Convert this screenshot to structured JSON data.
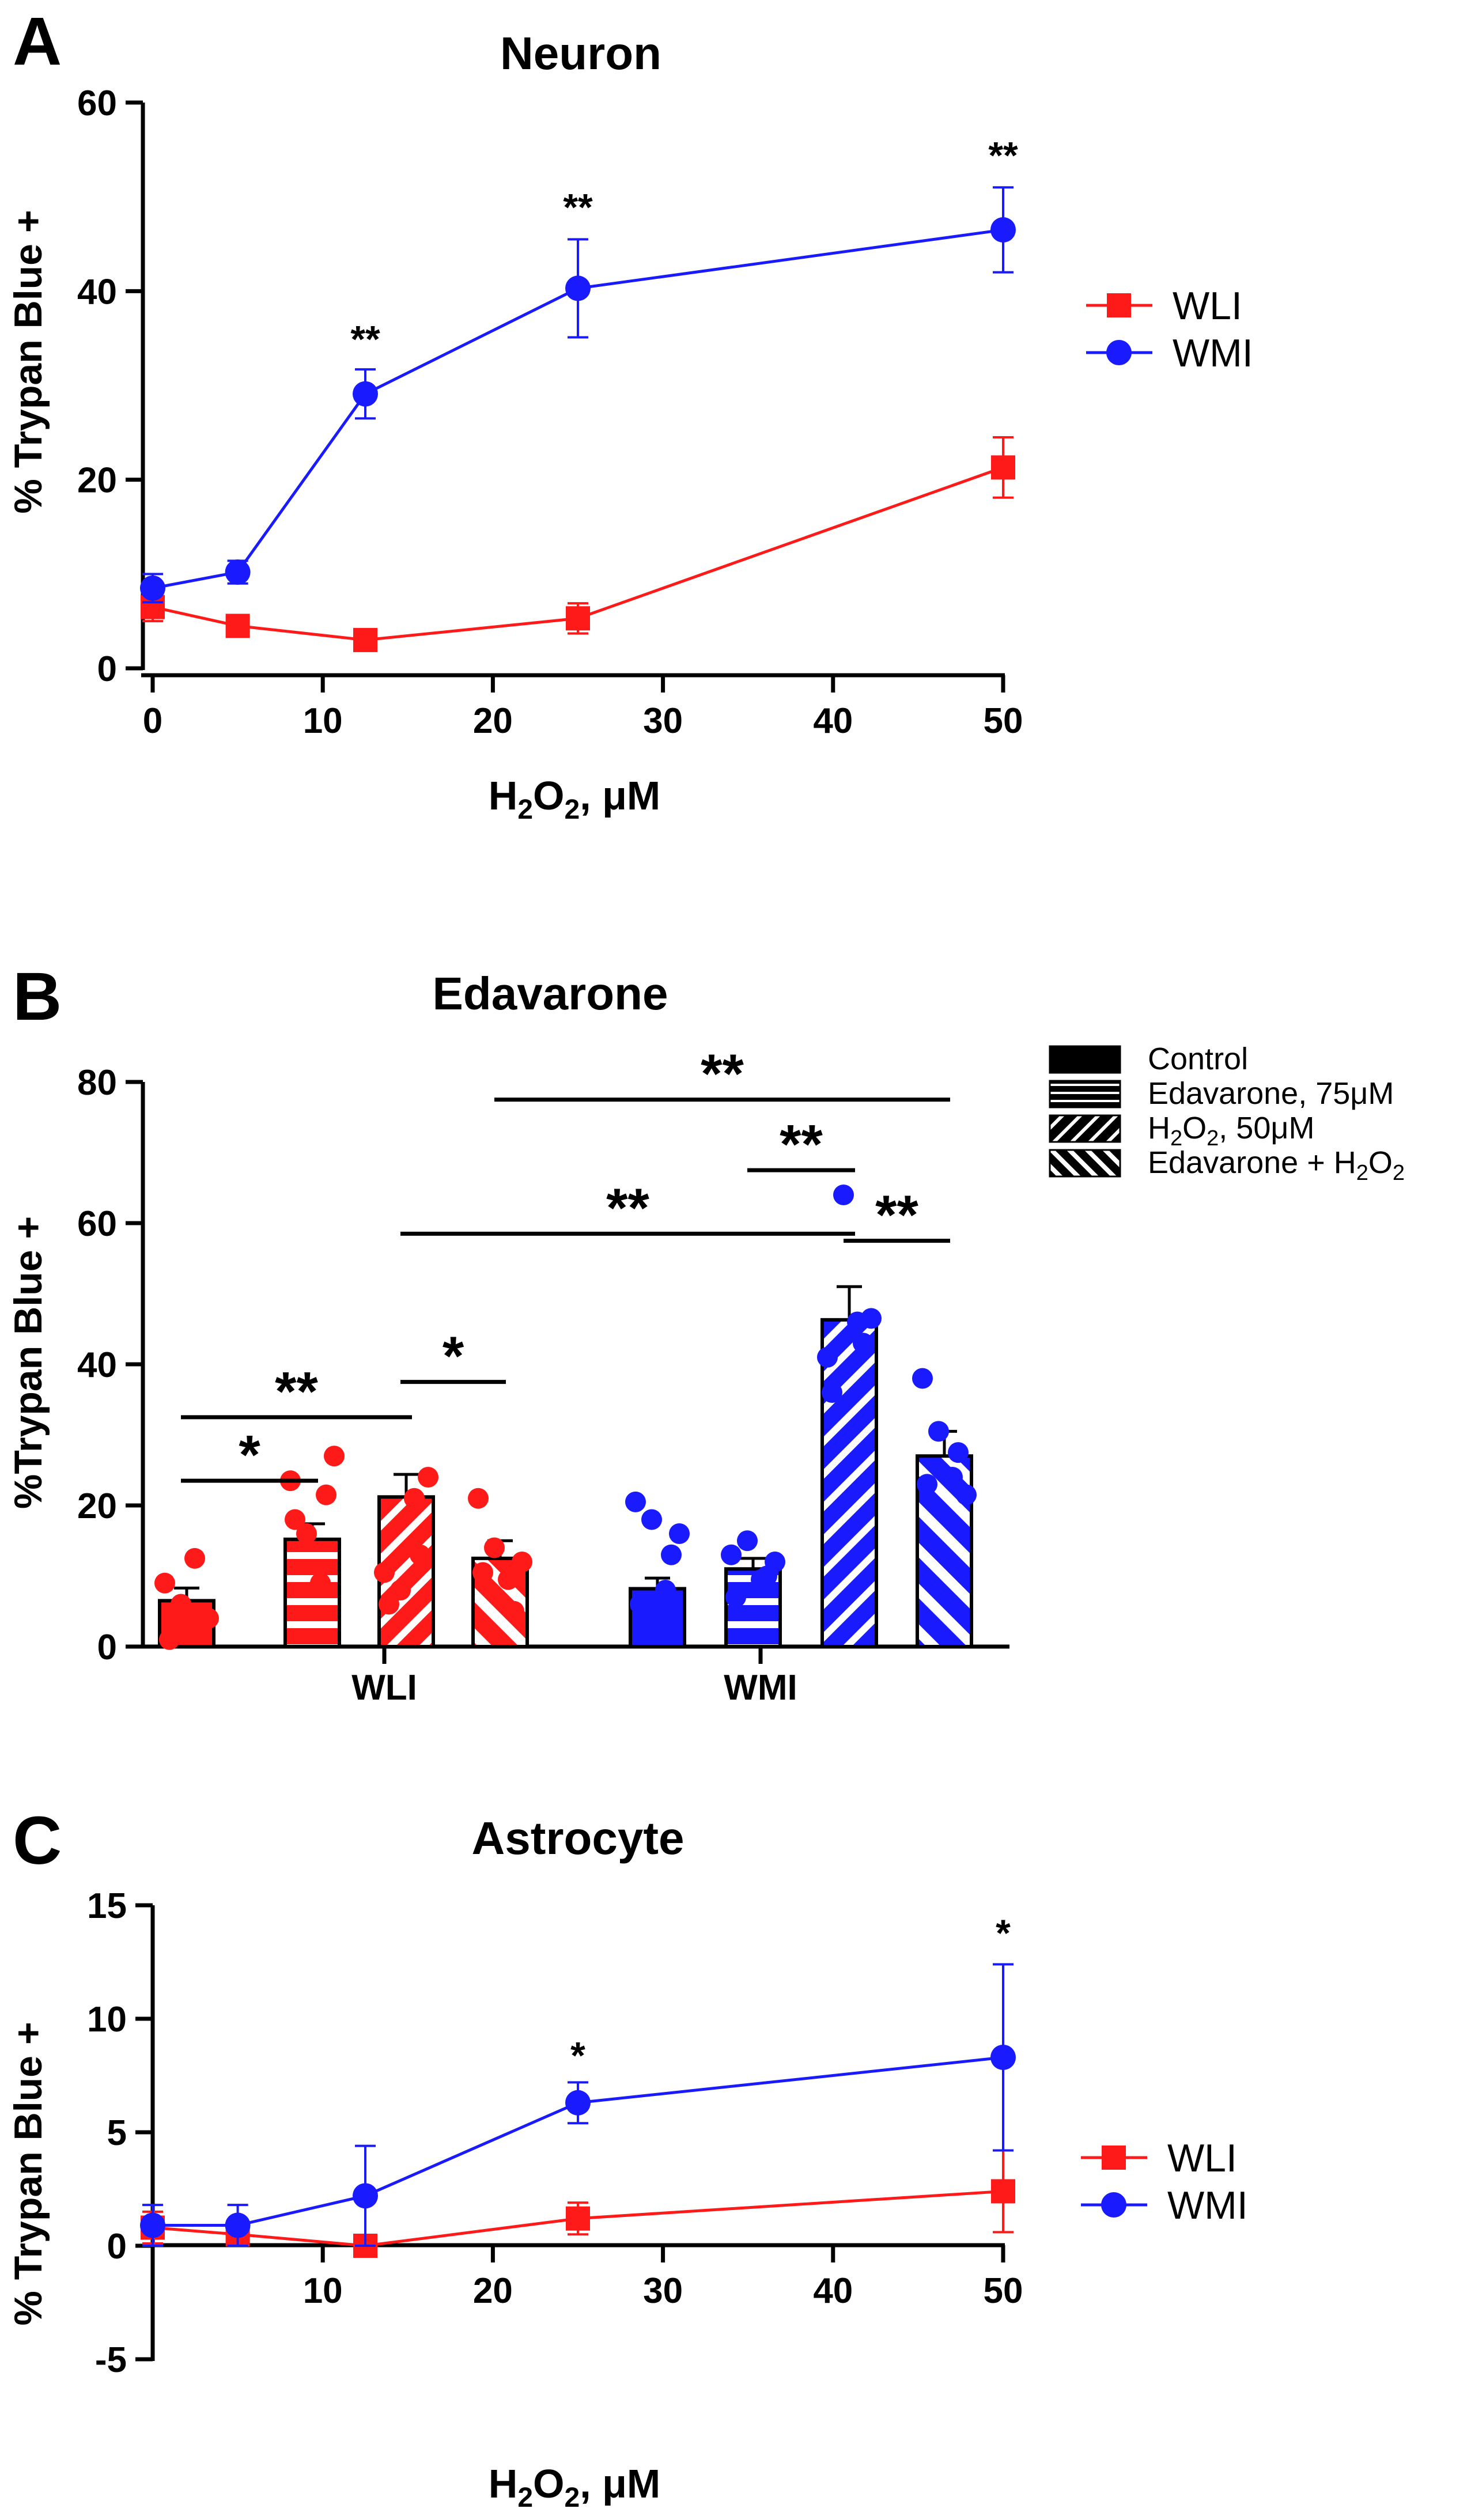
{
  "colors": {
    "red": "#ff1a1a",
    "blue": "#1a1aff",
    "axis": "#000000",
    "background": "#ffffff"
  },
  "chart_data": [
    {
      "panel": "A",
      "type": "line",
      "title": "Neuron",
      "xlabel": "H2O2, μM",
      "xlabel_parts": {
        "pre": "H",
        "sub1": "2",
        "mid": "O",
        "sub2": "2",
        "post": ", μM"
      },
      "ylabel": "% Trypan Blue +",
      "xlim": [
        0,
        50
      ],
      "ylim": [
        0,
        60
      ],
      "xticks": [
        0,
        10,
        20,
        30,
        40,
        50
      ],
      "yticks": [
        0,
        20,
        40,
        60
      ],
      "legend_position": "right",
      "series": [
        {
          "name": "WLI",
          "color": "#ff1a1a",
          "marker": "square",
          "x": [
            0,
            5,
            12.5,
            25,
            50
          ],
          "y": [
            6.5,
            4.5,
            3.0,
            5.3,
            21.3
          ],
          "err": [
            1.5,
            0.8,
            0.6,
            1.6,
            3.2
          ]
        },
        {
          "name": "WMI",
          "color": "#1a1aff",
          "marker": "circle",
          "x": [
            0,
            5,
            12.5,
            25,
            50
          ],
          "y": [
            8.5,
            10.2,
            29.1,
            40.3,
            46.5
          ],
          "err": [
            1.5,
            1.2,
            2.6,
            5.2,
            4.5
          ]
        }
      ],
      "annotations": [
        {
          "text": "**",
          "x": 12.5,
          "y": 33.5
        },
        {
          "text": "**",
          "x": 25,
          "y": 47.5
        },
        {
          "text": "**",
          "x": 50,
          "y": 53
        }
      ]
    },
    {
      "panel": "B",
      "type": "bar",
      "title": "Edavarone",
      "ylabel": "%Trypan Blue +",
      "ylim": [
        0,
        80
      ],
      "yticks": [
        0,
        20,
        40,
        60,
        80
      ],
      "groups": [
        "WLI",
        "WMI"
      ],
      "legend": [
        {
          "name": "Control",
          "pattern": "solid"
        },
        {
          "name": "Edavarone, 75μM",
          "pattern": "horizontal"
        },
        {
          "name": "H2O2, 50μM",
          "pattern": "diag-down",
          "label_parts": {
            "pre": "H",
            "sub1": "2",
            "mid": "O",
            "sub2": "2",
            "post": ", 50μM"
          }
        },
        {
          "name": "Edavarone + H2O2",
          "pattern": "diag-up",
          "label_parts": {
            "pre": "Edavarone + H",
            "sub1": "2",
            "mid": "O",
            "sub2": "2",
            "post": ""
          }
        }
      ],
      "series": [
        {
          "name": "Control",
          "values": [
            6.5,
            8.2
          ],
          "err": [
            1.8,
            1.5
          ]
        },
        {
          "name": "Edavarone, 75μM",
          "values": [
            15.2,
            11.0
          ],
          "err": [
            2.2,
            1.5
          ]
        },
        {
          "name": "H2O2, 50μM",
          "values": [
            21.2,
            46.3
          ],
          "err": [
            3.2,
            4.7
          ]
        },
        {
          "name": "Edavarone + H2O2",
          "values": [
            12.5,
            27.0
          ],
          "err": [
            2.5,
            3.5
          ]
        }
      ],
      "points": [
        [
          [
            1.0,
            2.5,
            4.0,
            6.0,
            9.0,
            12.5
          ],
          [
            6.0,
            13.0,
            16.0,
            18.0,
            20.5,
            8.0
          ]
        ],
        [
          [
            18.0,
            21.5,
            27.0,
            16.0,
            23.5,
            9.0
          ],
          [
            7.0,
            10.0,
            12.0,
            15.0,
            13.0,
            9.5
          ]
        ],
        [
          [
            6.0,
            13.0,
            24.0,
            8.0,
            10.5,
            21.0
          ],
          [
            36.0,
            43.0,
            46.5,
            64.0,
            41.0,
            46.0
          ]
        ],
        [
          [
            10.5,
            5.0,
            12.0,
            14.0,
            21.0,
            9.5
          ],
          [
            23.0,
            27.5,
            21.5,
            30.5,
            38.0,
            24.0
          ]
        ]
      ],
      "significance": [
        {
          "text": "*",
          "from": [
            0,
            0
          ],
          "to": [
            0,
            1
          ],
          "y": 23.5
        },
        {
          "text": "**",
          "from": [
            0,
            0
          ],
          "to": [
            0,
            2
          ],
          "y": 32.5
        },
        {
          "text": "*",
          "from": [
            0,
            2
          ],
          "to": [
            0,
            3
          ],
          "y": 37.5
        },
        {
          "text": "**",
          "from": [
            0,
            2
          ],
          "to": [
            1,
            2
          ],
          "y": 58.5
        },
        {
          "text": "**",
          "from": [
            1,
            1
          ],
          "to": [
            1,
            2
          ],
          "y": 67.5
        },
        {
          "text": "**",
          "from": [
            1,
            2
          ],
          "to": [
            1,
            3
          ],
          "y": 57.5
        },
        {
          "text": "**",
          "from": [
            0,
            3
          ],
          "to": [
            1,
            3
          ],
          "y": 77.5
        }
      ]
    },
    {
      "panel": "C",
      "type": "line",
      "title": "Astrocyte",
      "xlabel": "H2O2, μM",
      "xlabel_parts": {
        "pre": "H",
        "sub1": "2",
        "mid": "O",
        "sub2": "2",
        "post": ", μM"
      },
      "ylabel": "% Trypan Blue +",
      "xlim": [
        0,
        50
      ],
      "ylim": [
        -5,
        15
      ],
      "xticks": [
        10,
        20,
        30,
        40,
        50
      ],
      "yticks": [
        -5,
        0,
        5,
        10,
        15
      ],
      "legend_position": "right",
      "series": [
        {
          "name": "WLI",
          "color": "#ff1a1a",
          "marker": "square",
          "x": [
            0,
            5,
            12.5,
            25,
            50
          ],
          "y": [
            0.8,
            0.5,
            0.0,
            1.2,
            2.4
          ],
          "err": [
            0.7,
            0.3,
            0.1,
            0.7,
            1.8
          ]
        },
        {
          "name": "WMI",
          "color": "#1a1aff",
          "marker": "circle",
          "x": [
            0,
            5,
            12.5,
            25,
            50
          ],
          "y": [
            0.9,
            0.9,
            2.2,
            6.3,
            8.3
          ],
          "err": [
            0.9,
            0.9,
            2.2,
            0.9,
            4.1
          ]
        }
      ],
      "annotations": [
        {
          "text": "*",
          "x": 25,
          "y": 7.8
        },
        {
          "text": "*",
          "x": 50,
          "y": 13.2
        }
      ]
    }
  ],
  "panel_labels": [
    "A",
    "B",
    "C"
  ]
}
